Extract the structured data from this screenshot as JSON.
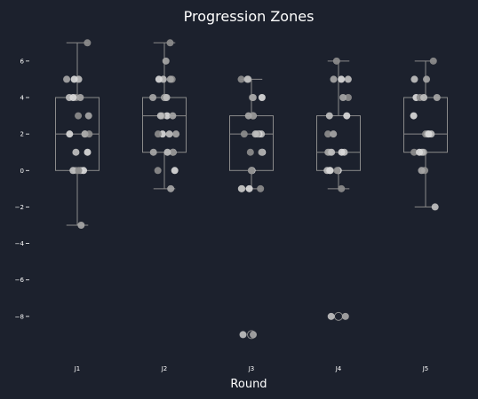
{
  "chart_data": {
    "type": "box",
    "title": "Progression Zones",
    "xlabel": "Round",
    "ylabel": "",
    "ylim": [
      -10,
      7.5
    ],
    "yticks": [
      -8,
      -6,
      -4,
      -2,
      0,
      2,
      4,
      6
    ],
    "ytick_labels": [
      "−8",
      "−6",
      "−4",
      "−2",
      "0",
      "2",
      "4",
      "6"
    ],
    "categories": [
      "J1",
      "J2",
      "J3",
      "J4",
      "J5"
    ],
    "grid": false,
    "boxes": [
      {
        "name": "J1",
        "q1": 0,
        "median": 2,
        "q3": 4,
        "whisker_low": -3,
        "whisker_high": 7,
        "outliers": []
      },
      {
        "name": "J2",
        "q1": 1,
        "median": 3,
        "q3": 4,
        "whisker_low": -1,
        "whisker_high": 7,
        "outliers": []
      },
      {
        "name": "J3",
        "q1": 0,
        "median": 2,
        "q3": 3,
        "whisker_low": -1,
        "whisker_high": 5,
        "outliers": [
          -9
        ]
      },
      {
        "name": "J4",
        "q1": 0,
        "median": 1,
        "q3": 3,
        "whisker_low": -1,
        "whisker_high": 6,
        "outliers": [
          -8
        ]
      },
      {
        "name": "J5",
        "q1": 1,
        "median": 2,
        "q3": 4,
        "whisker_low": -2,
        "whisker_high": 6,
        "outliers": []
      }
    ],
    "points": [
      [
        7,
        5,
        5,
        5,
        4,
        4,
        4,
        4,
        3,
        3,
        2,
        2,
        2,
        2,
        1,
        1,
        0,
        0,
        0,
        0,
        0,
        -3
      ],
      [
        7,
        6,
        5,
        5,
        5,
        5,
        4,
        4,
        4,
        4,
        4,
        3,
        3,
        3,
        3,
        2,
        2,
        2,
        2,
        1,
        1,
        1,
        1,
        0,
        0,
        -1
      ],
      [
        5,
        5,
        5,
        4,
        4,
        4,
        3,
        3,
        3,
        3,
        2,
        2,
        2,
        2,
        2,
        1,
        1,
        1,
        0,
        0,
        0,
        -1,
        -1,
        -1,
        -1,
        -9,
        -9
      ],
      [
        6,
        5,
        5,
        5,
        4,
        4,
        3,
        3,
        2,
        2,
        1,
        1,
        1,
        1,
        1,
        0,
        0,
        0,
        0,
        0,
        -1,
        -8,
        -8
      ],
      [
        6,
        5,
        5,
        4,
        4,
        4,
        4,
        3,
        2,
        2,
        2,
        2,
        1,
        1,
        1,
        1,
        0,
        0,
        -2
      ]
    ],
    "colors": {
      "background": "#1c212d",
      "box": "#8a8a8a",
      "points": [
        "#8c8c8c",
        "#a6a6a6",
        "#bfbfbf",
        "#d9d9d9"
      ],
      "text": "#ffffff"
    }
  }
}
